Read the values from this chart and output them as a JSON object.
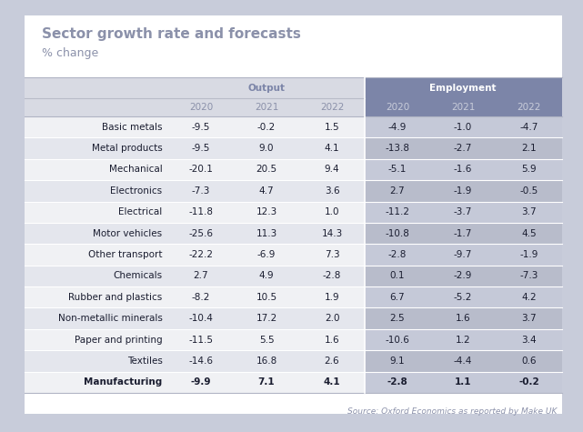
{
  "title": "Sector growth rate and forecasts",
  "subtitle": "% change",
  "source": "Source: Oxford Economics as reported by Make UK",
  "row_labels": [
    "Basic metals",
    "Metal products",
    "Mechanical",
    "Electronics",
    "Electrical",
    "Motor vehicles",
    "Other transport",
    "Chemicals",
    "Rubber and plastics",
    "Non-metallic minerals",
    "Paper and printing",
    "Textiles",
    "Manufacturing"
  ],
  "output_data": [
    [
      "-9.5",
      "-0.2",
      "1.5"
    ],
    [
      "-9.5",
      "9.0",
      "4.1"
    ],
    [
      "-20.1",
      "20.5",
      "9.4"
    ],
    [
      "-7.3",
      "4.7",
      "3.6"
    ],
    [
      "-11.8",
      "12.3",
      "1.0"
    ],
    [
      "-25.6",
      "11.3",
      "14.3"
    ],
    [
      "-22.2",
      "-6.9",
      "7.3"
    ],
    [
      "2.7",
      "4.9",
      "-2.8"
    ],
    [
      "-8.2",
      "10.5",
      "1.9"
    ],
    [
      "-10.4",
      "17.2",
      "2.0"
    ],
    [
      "-11.5",
      "5.5",
      "1.6"
    ],
    [
      "-14.6",
      "16.8",
      "2.6"
    ],
    [
      "-9.9",
      "7.1",
      "4.1"
    ]
  ],
  "employment_data": [
    [
      "-4.9",
      "-1.0",
      "-4.7"
    ],
    [
      "-13.8",
      "-2.7",
      "2.1"
    ],
    [
      "-5.1",
      "-1.6",
      "5.9"
    ],
    [
      "2.7",
      "-1.9",
      "-0.5"
    ],
    [
      "-11.2",
      "-3.7",
      "3.7"
    ],
    [
      "-10.8",
      "-1.7",
      "4.5"
    ],
    [
      "-2.8",
      "-9.7",
      "-1.9"
    ],
    [
      "0.1",
      "-2.9",
      "-7.3"
    ],
    [
      "6.7",
      "-5.2",
      "4.2"
    ],
    [
      "2.5",
      "1.6",
      "3.7"
    ],
    [
      "-10.6",
      "1.2",
      "3.4"
    ],
    [
      "9.1",
      "-4.4",
      "0.6"
    ],
    [
      "-2.8",
      "1.1",
      "-0.2"
    ]
  ],
  "outer_bg": "#c8ccda",
  "card_bg": "#ffffff",
  "output_header_bg": "#d8dae3",
  "employment_header_bg": "#7c85a8",
  "row_odd_bg": "#f0f1f4",
  "row_even_bg": "#e4e6ed",
  "emp_odd_bg": "#c8ccda",
  "emp_even_bg": "#bbbfc d",
  "title_color": "#8b91aa",
  "output_text_color": "#7c85a8",
  "employment_text_color": "#ffffff",
  "year_output_color": "#8b91aa",
  "year_emp_color": "#c8ccda",
  "data_color": "#2d3148",
  "mfg_color": "#1a1d30",
  "divider_color": "#ffffff",
  "title_fontsize": 11,
  "subtitle_fontsize": 9,
  "header_fontsize": 7.5,
  "cell_fontsize": 7.5,
  "source_fontsize": 6.5
}
